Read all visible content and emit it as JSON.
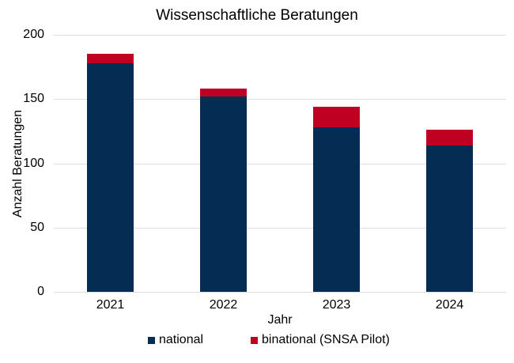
{
  "chart_data": {
    "type": "bar",
    "stacked": true,
    "title": "Wissenschaftliche Beratungen",
    "xlabel": "Jahr",
    "ylabel": "Anzahl Beratungen",
    "categories": [
      "2021",
      "2022",
      "2023",
      "2024"
    ],
    "series": [
      {
        "name": "national",
        "color": "#052C52",
        "values": [
          178,
          152,
          128,
          114
        ]
      },
      {
        "name": "binational (SNSA Pilot)",
        "color": "#C00022",
        "values": [
          7,
          6,
          16,
          12
        ]
      }
    ],
    "totals": [
      185,
      158,
      144,
      126
    ],
    "ylim": [
      0,
      200
    ],
    "yticks": [
      0,
      50,
      100,
      150,
      200
    ],
    "grid": true,
    "legend_position": "bottom"
  },
  "colors": {
    "background": "#FFFFFF",
    "gridline": "#DEDEDE",
    "text": "#000000"
  }
}
